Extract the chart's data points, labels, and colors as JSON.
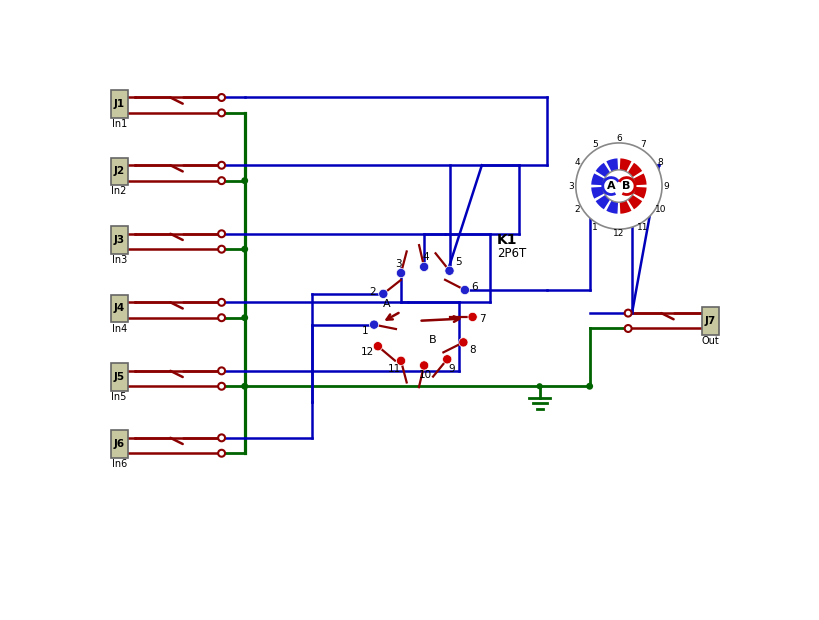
{
  "bg_color": "#ffffff",
  "dark_red": "#8B0000",
  "blue": "#0000BB",
  "green": "#006400",
  "gray": "#C8C8A0",
  "red_dot": "#CC0000",
  "blue_dot": "#2222CC",
  "switch_label": "K1",
  "switch_sublabel": "2P6T",
  "out_label": "J7",
  "out_sublabel": "Out",
  "conn_labels": [
    "J1",
    "J2",
    "J3",
    "J4",
    "J5",
    "J6"
  ],
  "conn_sublabels": [
    "In1",
    "In2",
    "In3",
    "In4",
    "In5",
    "In6"
  ]
}
